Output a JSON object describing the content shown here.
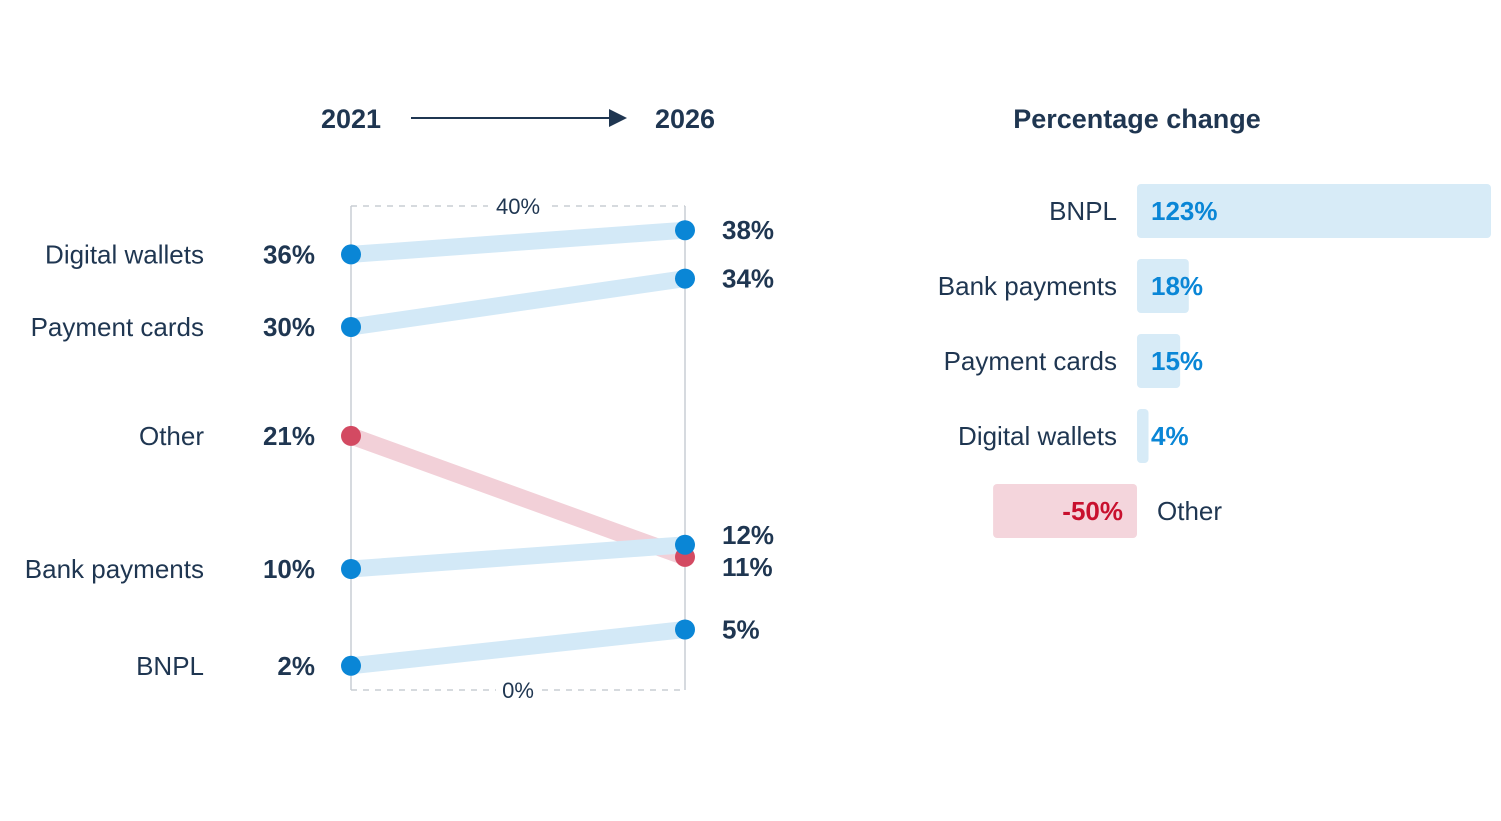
{
  "chart_data": [
    {
      "type": "slope",
      "from_label": "2021",
      "to_label": "2026",
      "axis_top_label": "40%",
      "axis_bottom_label": "0%",
      "ylim": [
        0,
        40
      ],
      "series": [
        {
          "name": "Digital wallets",
          "start": 36,
          "end": 38,
          "start_label": "36%",
          "end_label": "38%",
          "direction": "up"
        },
        {
          "name": "Payment cards",
          "start": 30,
          "end": 34,
          "start_label": "30%",
          "end_label": "34%",
          "direction": "up"
        },
        {
          "name": "Other",
          "start": 21,
          "end": 11,
          "start_label": "21%",
          "end_label": "11%",
          "direction": "down"
        },
        {
          "name": "Bank payments",
          "start": 10,
          "end": 12,
          "start_label": "10%",
          "end_label": "12%",
          "direction": "up"
        },
        {
          "name": "BNPL",
          "start": 2,
          "end": 5,
          "start_label": "2%",
          "end_label": "5%",
          "direction": "up"
        }
      ]
    },
    {
      "type": "bar",
      "title": "Percentage change",
      "categories": [
        "BNPL",
        "Bank payments",
        "Payment cards",
        "Digital wallets",
        "Other"
      ],
      "values": [
        123,
        18,
        15,
        4,
        -50
      ],
      "labels": [
        "123%",
        "18%",
        "15%",
        "4%",
        "-50%"
      ]
    }
  ],
  "colors": {
    "positive_dot": "#0a86d6",
    "positive_line": "#d3e9f7",
    "negative_dot": "#d34a62",
    "negative_line": "#f2d0d8",
    "positive_bar": "#d7ebf7",
    "negative_bar": "#f4d5dc",
    "positive_text": "#0a86d6",
    "negative_text": "#c8102e",
    "dark_text": "#1f3651"
  }
}
